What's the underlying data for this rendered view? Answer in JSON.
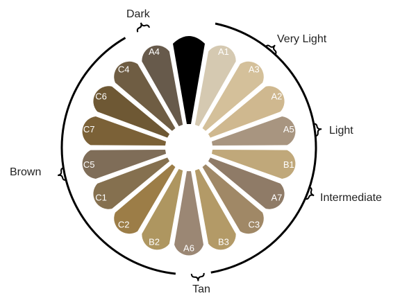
{
  "shades": [
    {
      "label": "A1",
      "color": "#d5c9b1"
    },
    {
      "label": "A3",
      "color": "#d4c09a"
    },
    {
      "label": "A2",
      "color": "#cfb88f"
    },
    {
      "label": "A5",
      "color": "#a89580"
    },
    {
      "label": "B1",
      "color": "#c0a87a"
    },
    {
      "label": "A7",
      "color": "#8f7b67"
    },
    {
      "label": "C3",
      "color": "#a08866"
    },
    {
      "label": "B3",
      "color": "#b39a67"
    },
    {
      "label": "A6",
      "color": "#9b8774"
    },
    {
      "label": "B2",
      "color": "#ae9660"
    },
    {
      "label": "C2",
      "color": "#9c7d47"
    },
    {
      "label": "C1",
      "color": "#85704f"
    },
    {
      "label": "C5",
      "color": "#7f6d58"
    },
    {
      "label": "C7",
      "color": "#7b6137"
    },
    {
      "label": "C6",
      "color": "#6e5834"
    },
    {
      "label": "C4",
      "color": "#6f5d43"
    },
    {
      "label": "A4",
      "color": "#675a4b"
    }
  ],
  "groups": {
    "dark": "Dark",
    "very_light": "Very Light",
    "light": "Light",
    "intermediate": "Intermediate",
    "tan": "Tan",
    "brown": "Brown"
  }
}
